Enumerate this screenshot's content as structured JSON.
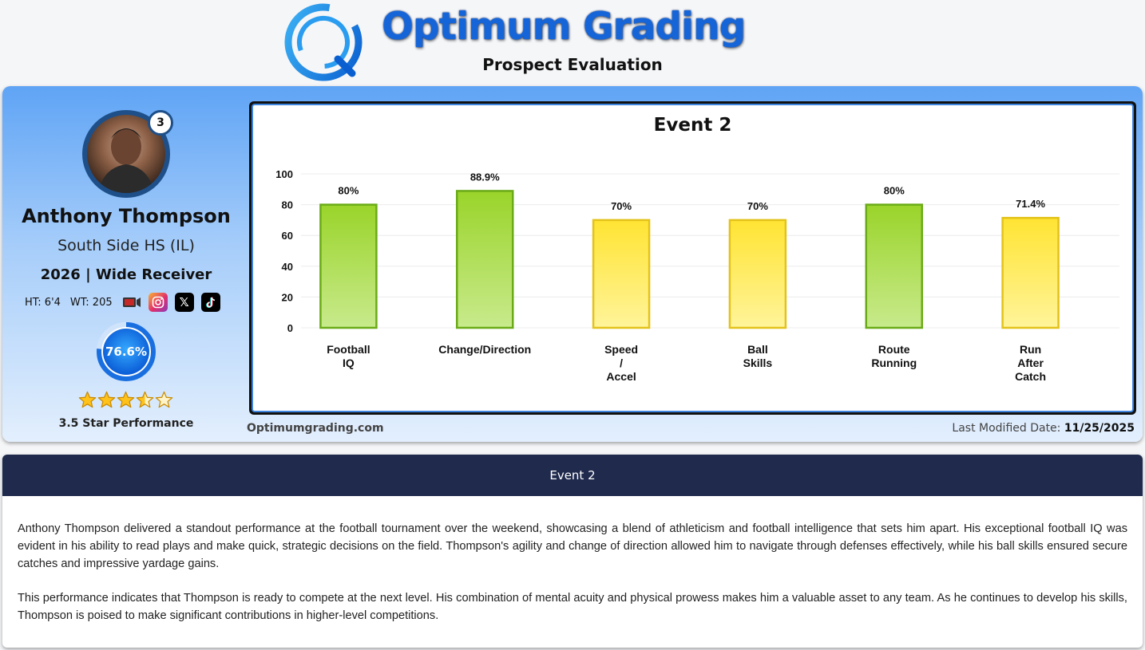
{
  "brand": {
    "title": "Optimum Grading",
    "subtitle": "Prospect Evaluation",
    "site": "Optimumgrading.com"
  },
  "player": {
    "rank": "3",
    "name": "Anthony Thompson",
    "school": "South Side HS (IL)",
    "class_position": "2026 | Wide Receiver",
    "height": "HT: 6'4",
    "weight": "WT: 205",
    "overall_score": "76.6%",
    "overall_fraction": 0.766,
    "stars": 3.5,
    "star_label": "3.5 Star Performance",
    "social_icons": [
      "video-icon",
      "instagram-icon",
      "x-icon",
      "tiktok-icon"
    ]
  },
  "last_modified": {
    "label": "Last Modified Date:",
    "value": "11/25/2025"
  },
  "chart_data": {
    "type": "bar",
    "title": "Event 2",
    "categories": [
      [
        "Football",
        "IQ"
      ],
      [
        "Change/Direction"
      ],
      [
        "Speed",
        "/",
        "Accel"
      ],
      [
        "Ball",
        "Skills"
      ],
      [
        "Route",
        "Running"
      ],
      [
        "Run",
        "After",
        "Catch"
      ]
    ],
    "values": [
      80,
      88.9,
      70,
      70,
      80,
      71.4
    ],
    "value_labels": [
      "80%",
      "88.9%",
      "70%",
      "70%",
      "80%",
      "71.4%"
    ],
    "ylim": [
      0,
      100
    ],
    "yticks": [
      0,
      20,
      40,
      60,
      80,
      100
    ],
    "grid": true,
    "colors": {
      "high_fill_top": "#9ad42a",
      "high_fill_bottom": "#c8ea8c",
      "high_stroke": "#6aab17",
      "mid_fill_top": "#ffe433",
      "mid_fill_bottom": "#fff49a",
      "mid_stroke": "#e3c21a"
    },
    "high_threshold": 75
  },
  "summary": {
    "heading": "Event 2",
    "paragraphs": [
      "Anthony Thompson delivered a standout performance at the football tournament over the weekend, showcasing a blend of athleticism and football intelligence that sets him apart. His exceptional football IQ was evident in his ability to read plays and make quick, strategic decisions on the field. Thompson's agility and change of direction allowed him to navigate through defenses effectively, while his ball skills ensured secure catches and impressive yardage gains.",
      "This performance indicates that Thompson is ready to compete at the next level. His combination of mental acuity and physical prowess makes him a valuable asset to any team. As he continues to develop his skills, Thompson is poised to make significant contributions in higher-level competitions."
    ]
  },
  "theme": {
    "accent": "#1565d8",
    "navy": "#1f2a4d",
    "ring": "#1e4f88"
  }
}
